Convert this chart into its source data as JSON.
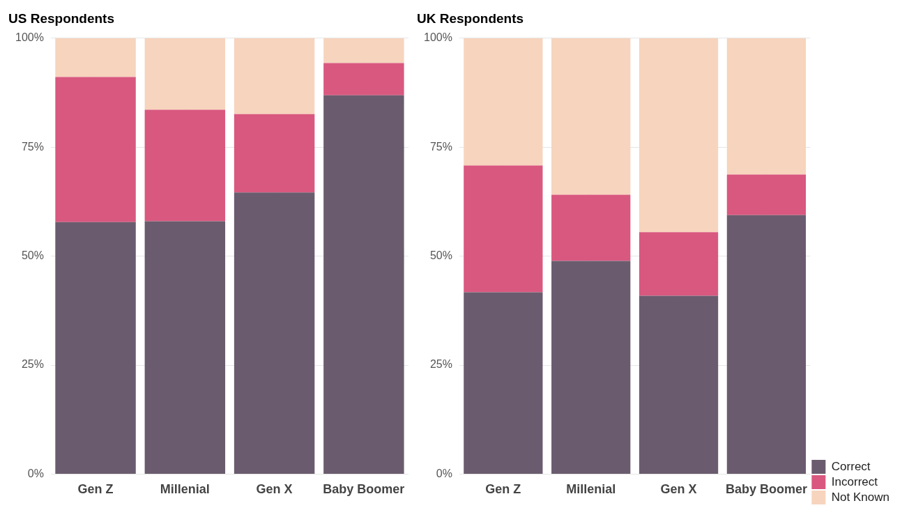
{
  "chart_data": [
    {
      "type": "bar",
      "title": "US Respondents",
      "categories": [
        "Gen Z",
        "Millenial",
        "Gen X",
        "Baby Boomer"
      ],
      "stacked": true,
      "series": [
        {
          "color": "#6a5c6e",
          "values": [
            57.8,
            58.0,
            64.6,
            86.9
          ]
        },
        {
          "color": "#d9587f",
          "values": [
            33.3,
            25.6,
            18.0,
            7.4
          ]
        },
        {
          "color": "#f7d4bd",
          "values": [
            8.9,
            16.4,
            17.4,
            5.7
          ]
        }
      ],
      "ylim": [
        0,
        100
      ],
      "yticks": [
        {
          "value": 0,
          "label": "0%"
        },
        {
          "value": 25,
          "label": "25%"
        },
        {
          "value": 50,
          "label": "50%"
        },
        {
          "value": 75,
          "label": "75%"
        },
        {
          "value": 100,
          "label": "100%"
        }
      ],
      "grid": true
    },
    {
      "type": "bar",
      "title": "UK Respondents",
      "categories": [
        "Gen Z",
        "Millenial",
        "Gen X",
        "Baby Boomer"
      ],
      "stacked": true,
      "series": [
        {
          "name": "Correct",
          "color": "#6a5c6e",
          "values": [
            41.7,
            48.9,
            40.9,
            59.4
          ]
        },
        {
          "name": "Incorrect",
          "color": "#d9587f",
          "values": [
            29.1,
            15.2,
            14.6,
            9.3
          ]
        },
        {
          "name": "Not Known",
          "color": "#f7d4bd",
          "values": [
            29.2,
            35.9,
            44.5,
            31.3
          ]
        }
      ],
      "ylim": [
        0,
        100
      ],
      "yticks": [
        {
          "value": 0,
          "label": "0%"
        },
        {
          "value": 25,
          "label": "25%"
        },
        {
          "value": 50,
          "label": "50%"
        },
        {
          "value": 75,
          "label": "75%"
        },
        {
          "value": 100,
          "label": "100%"
        }
      ],
      "grid": true,
      "legend": "bottom right"
    }
  ]
}
